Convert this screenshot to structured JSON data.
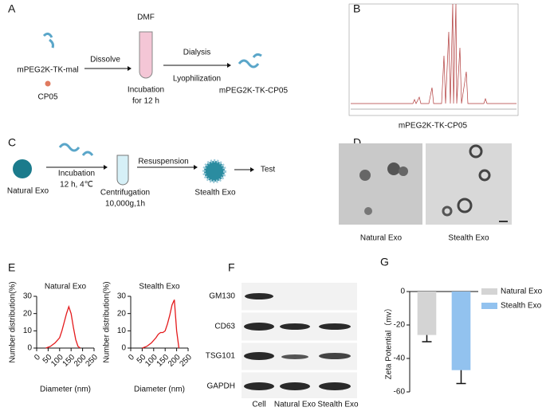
{
  "panel_labels": [
    "A",
    "B",
    "C",
    "D",
    "E",
    "F",
    "G"
  ],
  "scheme_a": {
    "reactant": "mPEG2K-TK-mal",
    "peptide": "CP05",
    "step1": "Dissolve",
    "solvent": "DMF",
    "incubation": [
      "Incubation",
      "for 12 h"
    ],
    "step2": [
      "Dialysis",
      "Lyophilization"
    ],
    "product": "mPEG2K-TK-CP05"
  },
  "nmr": {
    "caption": "mPEG2K-TK-CP05"
  },
  "scheme_c": {
    "start": "Natural  Exo",
    "incubation": [
      "Incubation",
      "12 h, 4℃"
    ],
    "centrifugation": [
      "Centrifugation",
      "10,000g,1h"
    ],
    "step": "Resuspension",
    "product": "Stealth Exo",
    "end": "Test"
  },
  "tem": {
    "labels": [
      "Natural Exo",
      "Stealth Exo"
    ]
  },
  "blot": {
    "rows": [
      "GM130",
      "CD63",
      "TSG101",
      "GAPDH"
    ],
    "columns": [
      "Cell",
      "Natural Exo",
      "Stealth Exo"
    ]
  },
  "chart_data": [
    {
      "type": "line",
      "title": "Natural Exo",
      "x_label": "Diameter (nm)",
      "y_label": "Number distribution(%)",
      "color": "#e41a1c",
      "x": [
        40,
        60,
        80,
        100,
        110,
        120,
        130,
        140,
        150,
        160,
        170,
        180,
        190
      ],
      "values": [
        0,
        1,
        3,
        6,
        10,
        15,
        20,
        24,
        20,
        12,
        5,
        1,
        0
      ],
      "xlim": [
        0,
        250
      ],
      "xticks": [
        0,
        50,
        100,
        150,
        200,
        250
      ],
      "ylim": [
        0,
        30
      ],
      "yticks": [
        0,
        10,
        20,
        30
      ]
    },
    {
      "type": "line",
      "title": "Stealth Exo",
      "x_label": "Diameter (nm)",
      "y_label": "Number distribution(%)",
      "color": "#e41a1c",
      "x": [
        50,
        70,
        90,
        110,
        120,
        130,
        140,
        150,
        160,
        170,
        180,
        190,
        200,
        210
      ],
      "values": [
        0,
        1,
        3,
        6,
        8,
        9,
        9,
        10,
        14,
        19,
        25,
        28,
        10,
        0
      ],
      "xlim": [
        0,
        250
      ],
      "xticks": [
        0,
        50,
        100,
        150,
        200,
        250
      ],
      "ylim": [
        0,
        30
      ],
      "yticks": [
        0,
        10,
        20,
        30
      ]
    },
    {
      "type": "bar",
      "y_label": "Zeta Potential（mv）",
      "ylim": [
        -60,
        0
      ],
      "yticks": [
        0,
        -20,
        -40,
        -60
      ],
      "series": [
        {
          "name": "Natural Exo",
          "color": "#d4d4d4",
          "values": [
            -26
          ],
          "errors": [
            4
          ]
        },
        {
          "name": "Stealth Exo",
          "color": "#92c2ef",
          "values": [
            -47
          ],
          "errors": [
            8
          ]
        }
      ]
    }
  ]
}
